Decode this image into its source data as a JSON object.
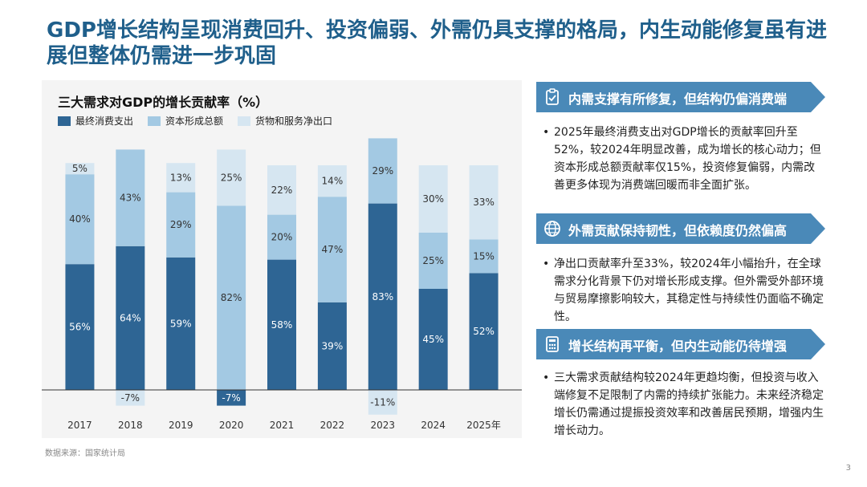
{
  "title": "GDP增长结构呈现消费回升、投资偏弱、外需仍具支撑的格局，内生动能修复虽有进展但整体仍需进一步巩固",
  "chart_data": {
    "type": "bar",
    "stacked": true,
    "title": "三大需求对GDP的增长贡献率（%）",
    "categories": [
      "2017",
      "2018",
      "2019",
      "2020",
      "2021",
      "2022",
      "2023",
      "2024",
      "2025年"
    ],
    "series": [
      {
        "name": "最终消费支出",
        "color": "#2e6594",
        "values": [
          56,
          64,
          59,
          -7,
          58,
          39,
          83,
          45,
          52
        ],
        "labels": [
          "56%",
          "64%",
          "59%",
          "-7%",
          "58%",
          "39%",
          "83%",
          "45%",
          "52%"
        ]
      },
      {
        "name": "资本形成总额",
        "color": "#a3c9e3",
        "values": [
          40,
          43,
          29,
          82,
          20,
          47,
          29,
          25,
          15
        ],
        "labels": [
          "40%",
          "43%",
          "29%",
          "82%",
          "20%",
          "47%",
          "29%",
          "25%",
          "15%"
        ]
      },
      {
        "name": "货物和服务净出口",
        "color": "#d6e6f1",
        "values": [
          5,
          -7,
          13,
          25,
          22,
          14,
          -11,
          30,
          33
        ],
        "labels": [
          "5%",
          "-7%",
          "13%",
          "25%",
          "22%",
          "14%",
          "-11%",
          "30%",
          "33%"
        ]
      }
    ],
    "ylim": [
      -15,
      115
    ],
    "grid": false,
    "legend": "top-left",
    "source": "数据来源：国家统计局"
  },
  "colors": {
    "banner": "#4a89b8",
    "title": "#1f5f8b"
  },
  "sections": [
    {
      "icon": "clipboard-icon",
      "heading": "内需支撑有所修复，但结构仍偏消费端",
      "bullet": "2025年最终消费支出对GDP增长的贡献率回升至52%，较2024年明显改善，成为增长的核心动力；但资本形成总额贡献率仅15%，投资修复偏弱，内需改善更多体现为消费端回暖而非全面扩张。"
    },
    {
      "icon": "globe-icon",
      "heading": "外需贡献保持韧性，但依赖度仍然偏高",
      "bullet": "净出口贡献率升至33%，较2024年小幅抬升，在全球需求分化背景下仍对增长形成支撑。但外需受外部环境与贸易摩擦影响较大，其稳定性与持续性仍面临不确定性。"
    },
    {
      "icon": "calculator-icon",
      "heading": "增长结构再平衡，但内生动能仍待增强",
      "bullet": "三大需求贡献结构较2024年更趋均衡，但投资与收入端修复不足限制了内需的持续扩张能力。未来经济稳定增长仍需通过提振投资效率和改善居民预期，增强内生增长动力。"
    }
  ],
  "bullet_char": "•",
  "page_number": "3"
}
